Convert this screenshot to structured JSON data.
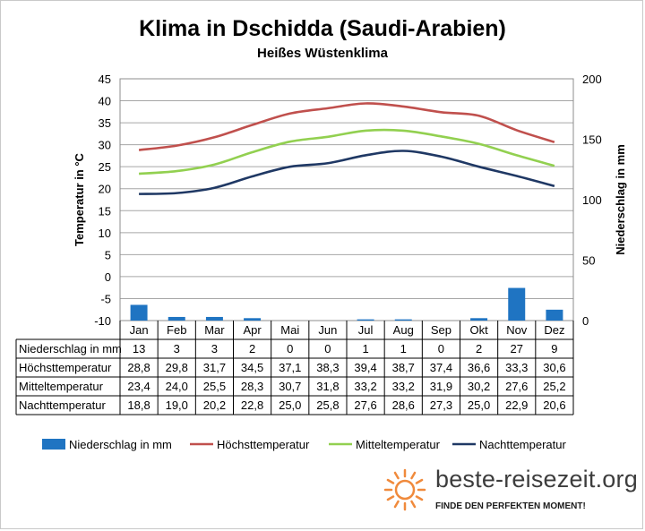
{
  "chart_data": {
    "type": "bar+line",
    "title": "Klima in Dschidda (Saudi-Arabien)",
    "subtitle": "Heißes Wüstenklima",
    "ylabel_left": "Temperatur in °C",
    "ylabel_right": "Niederschlag in mm",
    "ylim_left": [
      -10,
      45
    ],
    "ylim_right": [
      0,
      200
    ],
    "yticks_left": [
      "45",
      "40",
      "35",
      "30",
      "25",
      "20",
      "15",
      "10",
      "5",
      "0",
      "-5",
      "-10"
    ],
    "yticks_right": [
      "200",
      "150",
      "100",
      "50",
      "0"
    ],
    "categories": [
      "Jan",
      "Feb",
      "Mar",
      "Apr",
      "Mai",
      "Jun",
      "Jul",
      "Aug",
      "Sep",
      "Okt",
      "Nov",
      "Dez"
    ],
    "series": [
      {
        "name": "Niederschlag in mm",
        "kind": "bar",
        "axis": "right",
        "color": "#1f74c2",
        "values": [
          13,
          3,
          3,
          2,
          0,
          0,
          1,
          1,
          0,
          2,
          27,
          9
        ],
        "labels": [
          "13",
          "3",
          "3",
          "2",
          "0",
          "0",
          "1",
          "1",
          "0",
          "2",
          "27",
          "9"
        ]
      },
      {
        "name": "Höchsttemperatur",
        "kind": "line",
        "axis": "left",
        "color": "#c0504d",
        "values": [
          28.8,
          29.8,
          31.7,
          34.5,
          37.1,
          38.3,
          39.4,
          38.7,
          37.4,
          36.6,
          33.3,
          30.6
        ],
        "labels": [
          "28,8",
          "29,8",
          "31,7",
          "34,5",
          "37,1",
          "38,3",
          "39,4",
          "38,7",
          "37,4",
          "36,6",
          "33,3",
          "30,6"
        ]
      },
      {
        "name": "Mitteltemperatur",
        "kind": "line",
        "axis": "left",
        "color": "#92d050",
        "values": [
          23.4,
          24.0,
          25.5,
          28.3,
          30.7,
          31.8,
          33.2,
          33.2,
          31.9,
          30.2,
          27.6,
          25.2
        ],
        "labels": [
          "23,4",
          "24,0",
          "25,5",
          "28,3",
          "30,7",
          "31,8",
          "33,2",
          "33,2",
          "31,9",
          "30,2",
          "27,6",
          "25,2"
        ]
      },
      {
        "name": "Nachttemperatur",
        "kind": "line",
        "axis": "left",
        "color": "#1f3864",
        "values": [
          18.8,
          19.0,
          20.2,
          22.8,
          25.0,
          25.8,
          27.6,
          28.6,
          27.3,
          25.0,
          22.9,
          20.6
        ],
        "labels": [
          "18,8",
          "19,0",
          "20,2",
          "22,8",
          "25,0",
          "25,8",
          "27,6",
          "28,6",
          "27,3",
          "25,0",
          "22,9",
          "20,6"
        ]
      }
    ],
    "grid": true,
    "legend": "bottom",
    "data_table": true
  },
  "brand": {
    "name": "beste-reisezeit.org",
    "slogan": "FINDE DEN PERFEKTEN MOMENT!",
    "sun_color": "#f08a3c"
  }
}
